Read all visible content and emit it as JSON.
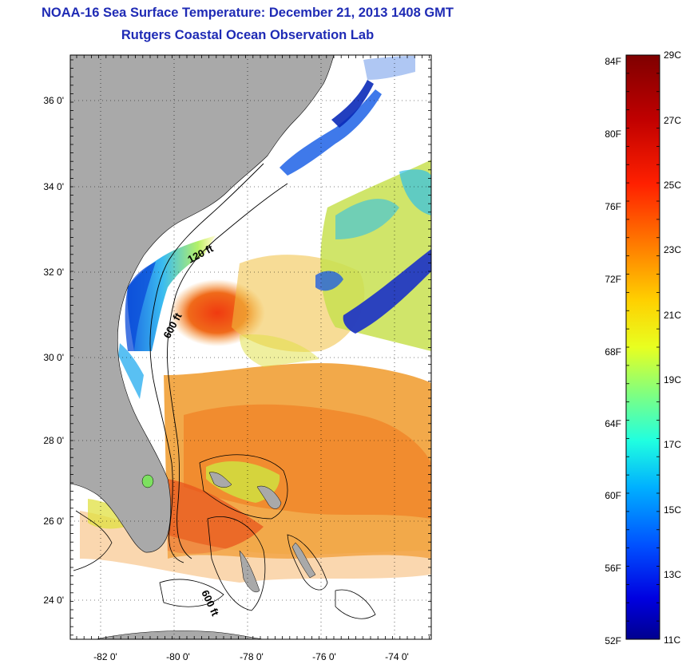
{
  "header": {
    "title": "NOAA-16 Sea Surface Temperature:  December 21, 2013 1408 GMT",
    "subtitle": "Rutgers Coastal Ocean Observation Lab"
  },
  "map": {
    "lat_ticks": [
      "36 0'",
      "34 0'",
      "32 0'",
      "30 0'",
      "28 0'",
      "26 0'",
      "24 0'"
    ],
    "lon_ticks": [
      "-82 0'",
      "-80 0'",
      "-78 0'",
      "-76 0'",
      "-74 0'"
    ],
    "contour_labels": [
      "120 ft",
      "600 ft",
      "600 ft"
    ],
    "land_color": "#a9a9a9",
    "cloud_color": "#ffffff"
  },
  "colorbar": {
    "fahrenheit_labels": [
      "84F",
      "80F",
      "76F",
      "72F",
      "68F",
      "64F",
      "60F",
      "56F",
      "52F"
    ],
    "celsius_labels": [
      "29C",
      "27C",
      "25C",
      "23C",
      "21C",
      "19C",
      "17C",
      "15C",
      "13C",
      "11C"
    ],
    "colormap": [
      "#7f0000",
      "#ff0000",
      "#ff8000",
      "#ffff00",
      "#80ff80",
      "#00ffff",
      "#0080ff",
      "#0000ff",
      "#00008f"
    ]
  }
}
